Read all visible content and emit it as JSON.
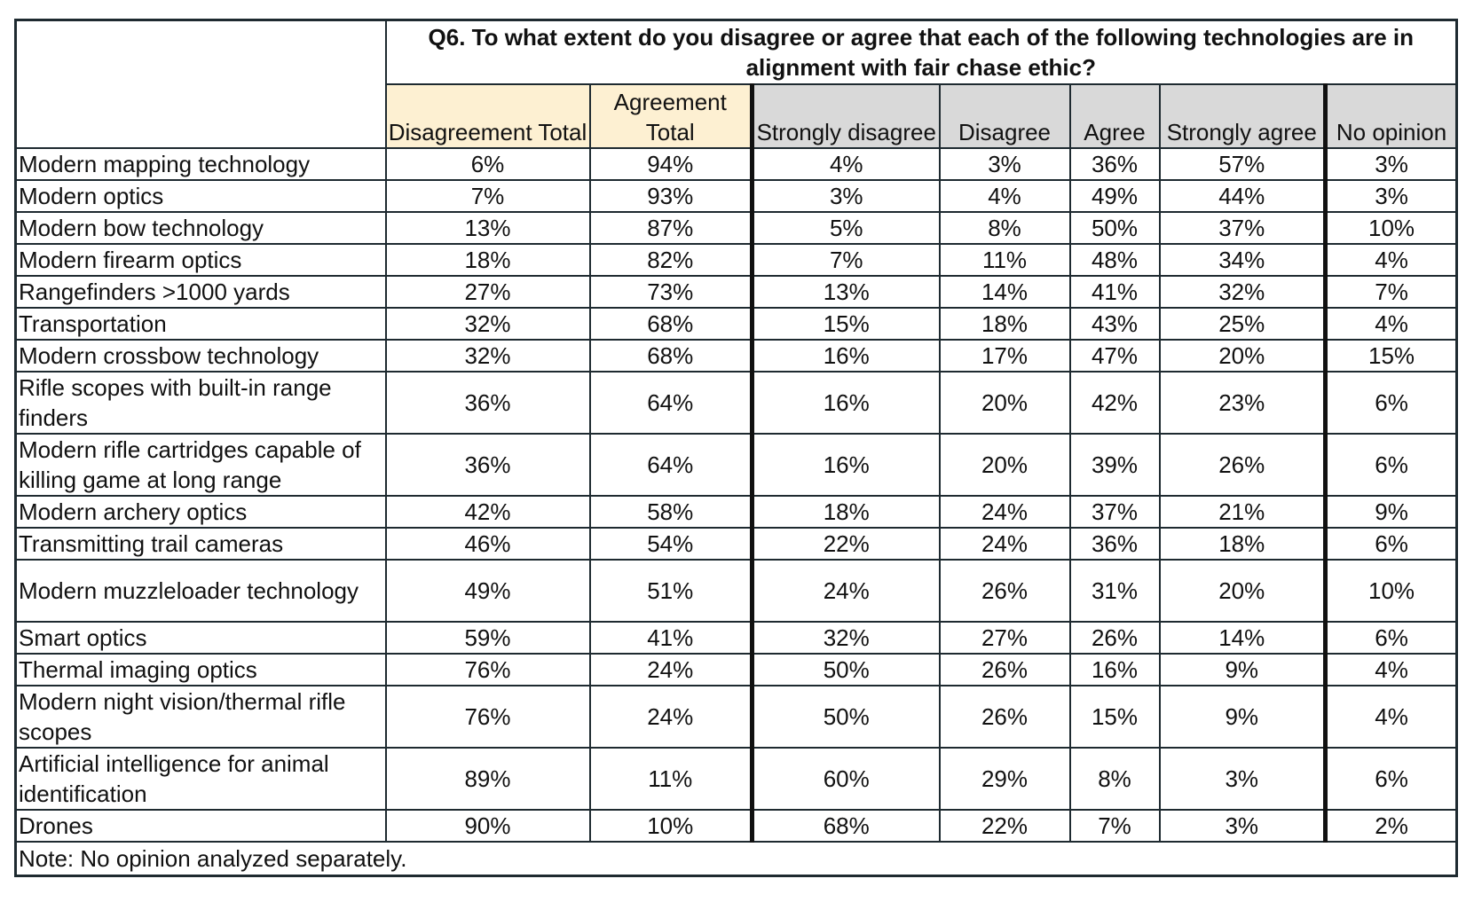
{
  "question": "Q6. To what extent do you disagree or agree that each of the following technologies are in alignment with fair chase ethic?",
  "columns": [
    "Disagreement Total",
    "Agreement Total",
    "Strongly disagree",
    "Disagree",
    "Agree",
    "Strongly agree",
    "No opinion"
  ],
  "rows": [
    {
      "label": "Modern mapping technology",
      "values": [
        "6%",
        "94%",
        "4%",
        "3%",
        "36%",
        "57%",
        "3%"
      ]
    },
    {
      "label": "Modern optics",
      "values": [
        "7%",
        "93%",
        "3%",
        "4%",
        "49%",
        "44%",
        "3%"
      ]
    },
    {
      "label": "Modern bow technology",
      "values": [
        "13%",
        "87%",
        "5%",
        "8%",
        "50%",
        "37%",
        "10%"
      ]
    },
    {
      "label": "Modern firearm optics",
      "values": [
        "18%",
        "82%",
        "7%",
        "11%",
        "48%",
        "34%",
        "4%"
      ]
    },
    {
      "label": "Rangefinders >1000 yards",
      "values": [
        "27%",
        "73%",
        "13%",
        "14%",
        "41%",
        "32%",
        "7%"
      ]
    },
    {
      "label": "Transportation",
      "values": [
        "32%",
        "68%",
        "15%",
        "18%",
        "43%",
        "25%",
        "4%"
      ]
    },
    {
      "label": "Modern crossbow technology",
      "values": [
        "32%",
        "68%",
        "16%",
        "17%",
        "47%",
        "20%",
        "15%"
      ]
    },
    {
      "label": "Rifle scopes with built-in range finders",
      "values": [
        "36%",
        "64%",
        "16%",
        "20%",
        "42%",
        "23%",
        "6%"
      ],
      "tall": true
    },
    {
      "label": "Modern rifle cartridges capable of killing game at long range",
      "values": [
        "36%",
        "64%",
        "16%",
        "20%",
        "39%",
        "26%",
        "6%"
      ],
      "tall": true
    },
    {
      "label": "Modern archery optics",
      "values": [
        "42%",
        "58%",
        "18%",
        "24%",
        "37%",
        "21%",
        "9%"
      ]
    },
    {
      "label": "Transmitting trail cameras",
      "values": [
        "46%",
        "54%",
        "22%",
        "24%",
        "36%",
        "18%",
        "6%"
      ]
    },
    {
      "label": "Modern muzzleloader technology",
      "values": [
        "49%",
        "51%",
        "24%",
        "26%",
        "31%",
        "20%",
        "10%"
      ],
      "tall": true
    },
    {
      "label": "Smart optics",
      "values": [
        "59%",
        "41%",
        "32%",
        "27%",
        "26%",
        "14%",
        "6%"
      ]
    },
    {
      "label": "Thermal imaging optics",
      "values": [
        "76%",
        "24%",
        "50%",
        "26%",
        "16%",
        "9%",
        "4%"
      ]
    },
    {
      "label": "Modern night vision/thermal rifle scopes",
      "values": [
        "76%",
        "24%",
        "50%",
        "26%",
        "15%",
        "9%",
        "4%"
      ],
      "tall": true
    },
    {
      "label": "Artificial intelligence for animal identification",
      "values": [
        "89%",
        "11%",
        "60%",
        "29%",
        "8%",
        "3%",
        "6%"
      ],
      "tall": true
    },
    {
      "label": "Drones",
      "values": [
        "90%",
        "10%",
        "68%",
        "22%",
        "7%",
        "3%",
        "2%"
      ]
    }
  ],
  "note": "Note: No opinion analyzed separately.",
  "colors": {
    "totals_header": "#fdf0d2",
    "detail_header": "#d9d9d9",
    "border": "#1e2a30"
  }
}
